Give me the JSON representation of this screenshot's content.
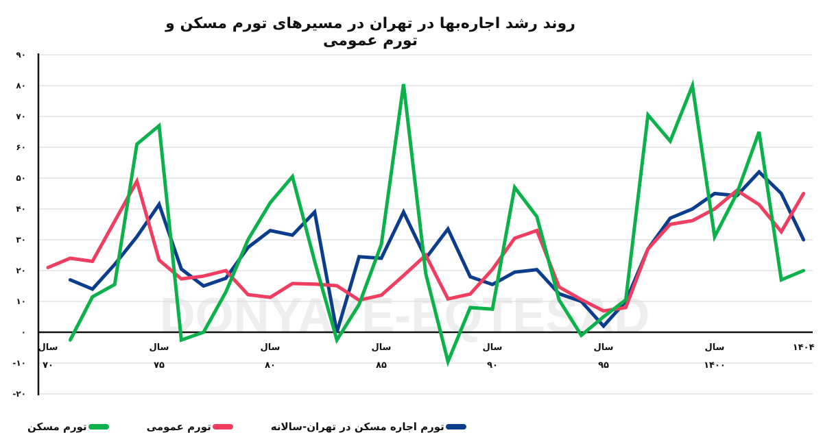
{
  "title": "روند رشد اجاره‌بها در تهران در مسیرهای تورم مسکن و تورم عمومی",
  "watermark": "DONYAYE-EQTESAD",
  "legend": [
    {
      "label": "تورم مسکن",
      "color": "#0db14b"
    },
    {
      "label": "تورم عمومی",
      "color": "#ef3e5f"
    },
    {
      "label": "تورم اجاره مسکن در تهران-سالانه",
      "color": "#0b3d8c"
    }
  ],
  "y_ticks": [
    "۹۰",
    "۸۰",
    "۷۰",
    "۶۰",
    "۵۰",
    "۴۰",
    "۳۰",
    "۲۰",
    "۱۰",
    "۰",
    "-۱۰",
    "-۲۰"
  ],
  "x_ticks": [
    {
      "line1": "سال",
      "line2": "۷۰",
      "year": 70
    },
    {
      "line1": "سال",
      "line2": "۷۵",
      "year": 75
    },
    {
      "line1": "سال",
      "line2": "۸۰",
      "year": 80
    },
    {
      "line1": "سال",
      "line2": "۸۵",
      "year": 85
    },
    {
      "line1": "سال",
      "line2": "۹۰",
      "year": 90
    },
    {
      "line1": "سال",
      "line2": "۹۵",
      "year": 95
    },
    {
      "line1": "سال",
      "line2": "۱۴۰۰",
      "year": 100
    },
    {
      "line1": "۱۴۰۴",
      "line2": "",
      "year": 104
    }
  ],
  "chart_data": {
    "type": "line",
    "title": "روند رشد اجاره‌بها در تهران در مسیرهای تورم مسکن و تورم عمومی",
    "xlabel": "",
    "ylabel": "",
    "ylim": [
      -20,
      90
    ],
    "grid": true,
    "legend_position": "bottom",
    "x": [
      1370,
      1371,
      1372,
      1373,
      1374,
      1375,
      1376,
      1377,
      1378,
      1379,
      1380,
      1381,
      1382,
      1383,
      1384,
      1385,
      1386,
      1387,
      1388,
      1389,
      1390,
      1391,
      1392,
      1393,
      1394,
      1395,
      1396,
      1397,
      1398,
      1399,
      1400,
      1401,
      1402,
      1403,
      1404
    ],
    "series": [
      {
        "name": "تورم اجاره مسکن در تهران-سالانه",
        "color": "#0b3d8c",
        "values": [
          null,
          17,
          14,
          22,
          31,
          41.5,
          20.5,
          15,
          17.5,
          27.5,
          33,
          31.5,
          39,
          0,
          24.5,
          24,
          39,
          24,
          33.5,
          18,
          15.5,
          19.5,
          20.3,
          12.5,
          10,
          2,
          10,
          27,
          37,
          40,
          45,
          44.3,
          52,
          45,
          30
        ]
      },
      {
        "name": "تورم عمومی",
        "color": "#ef3e5f",
        "values": [
          21,
          24,
          23,
          36,
          49,
          23.4,
          17.3,
          18.2,
          20,
          12.2,
          11.3,
          15.8,
          15.6,
          15.1,
          10.4,
          12,
          18.4,
          25,
          10.8,
          12.4,
          20.4,
          30.5,
          33,
          14.7,
          10.6,
          6.9,
          8,
          27,
          35,
          36.2,
          40,
          46,
          41.4,
          32.6,
          45
        ]
      },
      {
        "name": "تورم مسکن",
        "color": "#0db14b",
        "values": [
          null,
          -2.5,
          11.5,
          15.5,
          61,
          67,
          -2.5,
          0,
          13,
          30,
          42,
          50.5,
          23,
          -2.5,
          9,
          28.5,
          80.5,
          19,
          -9.5,
          8,
          7.5,
          47,
          37.5,
          10.5,
          -1,
          5,
          10.5,
          70.5,
          62,
          80,
          31,
          45,
          65,
          17,
          20
        ]
      }
    ]
  }
}
